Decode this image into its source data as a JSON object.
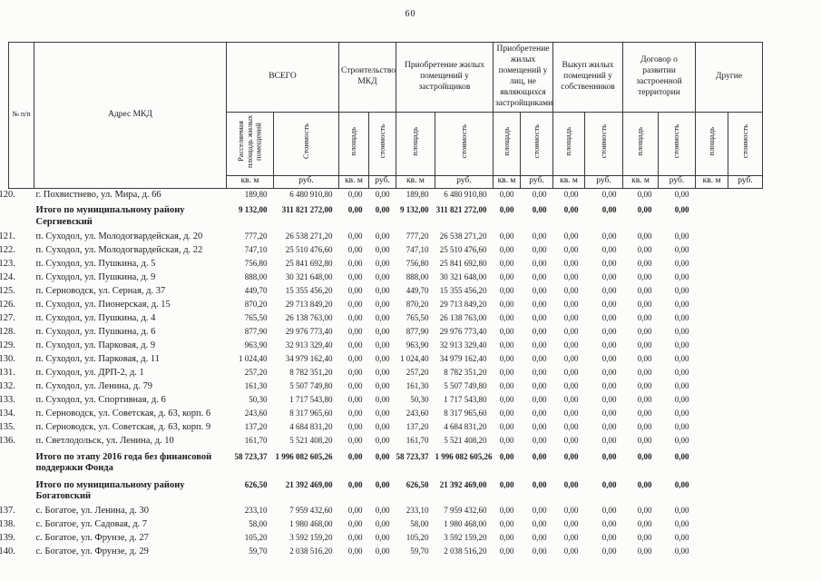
{
  "page": {
    "number": "60"
  },
  "table": {
    "header": {
      "col_num": "№ п/п",
      "col_address": "Адрес МКД",
      "groups": [
        {
          "label": "ВСЕГО",
          "sub": [
            "Расселяемая площадь жилых помещений",
            "Стоимость"
          ]
        },
        {
          "label": "Строительство МКД",
          "sub": [
            "площадь",
            "стоимость"
          ]
        },
        {
          "label": "Приобретение жилых помещений у застройщиков",
          "sub": [
            "площадь",
            "стоимость"
          ]
        },
        {
          "label": "Приобретение жилых помещений у лиц, не являющихся застройщиками",
          "sub": [
            "площадь",
            "стоимость"
          ]
        },
        {
          "label": "Выкуп жилых помещений у собственников",
          "sub": [
            "площадь",
            "стоимость"
          ]
        },
        {
          "label": "Договор о развитии застроенной территории",
          "sub": [
            "площадь",
            "стоимость"
          ]
        },
        {
          "label": "Другие",
          "sub": [
            "площадь",
            "стоимость"
          ]
        }
      ],
      "units": {
        "area": "кв. м",
        "cost": "руб."
      }
    },
    "rows": [
      {
        "num": "120.",
        "address": "г. Похвистнево, ул. Мира, д. 66",
        "bold": false,
        "values": [
          "189,80",
          "6 480 910,80",
          "0,00",
          "0,00",
          "189,80",
          "6 480 910,80",
          "0,00",
          "0,00",
          "0,00",
          "0,00",
          "0,00",
          "0,00",
          "",
          ""
        ]
      },
      {
        "num": "",
        "address": "Итого по муниципальному району Сергиевский",
        "bold": true,
        "values": [
          "9 132,00",
          "311 821 272,00",
          "0,00",
          "0,00",
          "9 132,00",
          "311 821 272,00",
          "0,00",
          "0,00",
          "0,00",
          "0,00",
          "0,00",
          "0,00",
          "",
          ""
        ]
      },
      {
        "num": "121.",
        "address": "п. Суходол, ул. Молодогвардейская, д. 20",
        "bold": false,
        "values": [
          "777,20",
          "26 538 271,20",
          "0,00",
          "0,00",
          "777,20",
          "26 538 271,20",
          "0,00",
          "0,00",
          "0,00",
          "0,00",
          "0,00",
          "0,00",
          "",
          ""
        ]
      },
      {
        "num": "122.",
        "address": "п. Суходол, ул. Молодогвардейская, д. 22",
        "bold": false,
        "values": [
          "747,10",
          "25 510 476,60",
          "0,00",
          "0,00",
          "747,10",
          "25 510 476,60",
          "0,00",
          "0,00",
          "0,00",
          "0,00",
          "0,00",
          "0,00",
          "",
          ""
        ]
      },
      {
        "num": "123.",
        "address": "п. Суходол, ул. Пушкина, д. 5",
        "bold": false,
        "values": [
          "756,80",
          "25 841 692,80",
          "0,00",
          "0,00",
          "756,80",
          "25 841 692,80",
          "0,00",
          "0,00",
          "0,00",
          "0,00",
          "0,00",
          "0,00",
          "",
          ""
        ]
      },
      {
        "num": "124.",
        "address": "п. Суходол, ул. Пушкина, д. 9",
        "bold": false,
        "values": [
          "888,00",
          "30 321 648,00",
          "0,00",
          "0,00",
          "888,00",
          "30 321 648,00",
          "0,00",
          "0,00",
          "0,00",
          "0,00",
          "0,00",
          "0,00",
          "",
          ""
        ]
      },
      {
        "num": "125.",
        "address": "п. Серноводск, ул. Серная, д. 37",
        "bold": false,
        "values": [
          "449,70",
          "15 355 456,20",
          "0,00",
          "0,00",
          "449,70",
          "15 355 456,20",
          "0,00",
          "0,00",
          "0,00",
          "0,00",
          "0,00",
          "0,00",
          "",
          ""
        ]
      },
      {
        "num": "126.",
        "address": "п. Суходол, ул. Пионерская, д. 15",
        "bold": false,
        "values": [
          "870,20",
          "29 713 849,20",
          "0,00",
          "0,00",
          "870,20",
          "29 713 849,20",
          "0,00",
          "0,00",
          "0,00",
          "0,00",
          "0,00",
          "0,00",
          "",
          ""
        ]
      },
      {
        "num": "127.",
        "address": "п. Суходол, ул. Пушкина, д. 4",
        "bold": false,
        "values": [
          "765,50",
          "26 138 763,00",
          "0,00",
          "0,00",
          "765,50",
          "26 138 763,00",
          "0,00",
          "0,00",
          "0,00",
          "0,00",
          "0,00",
          "0,00",
          "",
          ""
        ]
      },
      {
        "num": "128.",
        "address": "п. Суходол, ул. Пушкина, д. 6",
        "bold": false,
        "values": [
          "877,90",
          "29 976 773,40",
          "0,00",
          "0,00",
          "877,90",
          "29 976 773,40",
          "0,00",
          "0,00",
          "0,00",
          "0,00",
          "0,00",
          "0,00",
          "",
          ""
        ]
      },
      {
        "num": "129.",
        "address": "п. Суходол, ул. Парковая, д. 9",
        "bold": false,
        "values": [
          "963,90",
          "32 913 329,40",
          "0,00",
          "0,00",
          "963,90",
          "32 913 329,40",
          "0,00",
          "0,00",
          "0,00",
          "0,00",
          "0,00",
          "0,00",
          "",
          ""
        ]
      },
      {
        "num": "130.",
        "address": "п. Суходол, ул. Парковая, д. 11",
        "bold": false,
        "values": [
          "1 024,40",
          "34 979 162,40",
          "0,00",
          "0,00",
          "1 024,40",
          "34 979 162,40",
          "0,00",
          "0,00",
          "0,00",
          "0,00",
          "0,00",
          "0,00",
          "",
          ""
        ]
      },
      {
        "num": "131.",
        "address": "п. Суходол, ул. ДРП-2, д. 1",
        "bold": false,
        "values": [
          "257,20",
          "8 782 351,20",
          "0,00",
          "0,00",
          "257,20",
          "8 782 351,20",
          "0,00",
          "0,00",
          "0,00",
          "0,00",
          "0,00",
          "0,00",
          "",
          ""
        ]
      },
      {
        "num": "132.",
        "address": "п. Суходол, ул. Ленина, д. 79",
        "bold": false,
        "values": [
          "161,30",
          "5 507 749,80",
          "0,00",
          "0,00",
          "161,30",
          "5 507 749,80",
          "0,00",
          "0,00",
          "0,00",
          "0,00",
          "0,00",
          "0,00",
          "",
          ""
        ]
      },
      {
        "num": "133.",
        "address": "п. Суходол, ул. Спортивная, д. 6",
        "bold": false,
        "values": [
          "50,30",
          "1 717 543,80",
          "0,00",
          "0,00",
          "50,30",
          "1 717 543,80",
          "0,00",
          "0,00",
          "0,00",
          "0,00",
          "0,00",
          "0,00",
          "",
          ""
        ]
      },
      {
        "num": "134.",
        "address": "п. Серноводск, ул. Советская, д. 63, корп. 6",
        "bold": false,
        "values": [
          "243,60",
          "8 317 965,60",
          "0,00",
          "0,00",
          "243,60",
          "8 317 965,60",
          "0,00",
          "0,00",
          "0,00",
          "0,00",
          "0,00",
          "0,00",
          "",
          ""
        ]
      },
      {
        "num": "135.",
        "address": "п. Серноводск, ул. Советская, д. 63, корп. 9",
        "bold": false,
        "values": [
          "137,20",
          "4 684 831,20",
          "0,00",
          "0,00",
          "137,20",
          "4 684 831,20",
          "0,00",
          "0,00",
          "0,00",
          "0,00",
          "0,00",
          "0,00",
          "",
          ""
        ]
      },
      {
        "num": "136.",
        "address": "п. Светлодольск, ул. Ленина, д. 10",
        "bold": false,
        "values": [
          "161,70",
          "5 521 408,20",
          "0,00",
          "0,00",
          "161,70",
          "5 521 408,20",
          "0,00",
          "0,00",
          "0,00",
          "0,00",
          "0,00",
          "0,00",
          "",
          ""
        ]
      },
      {
        "num": "",
        "address": "Итого по этапу 2016 года без финансовой поддержки Фонда",
        "bold": true,
        "values": [
          "58 723,37",
          "1 996 082 605,26",
          "0,00",
          "0,00",
          "58 723,37",
          "1 996 082 605,26",
          "0,00",
          "0,00",
          "0,00",
          "0,00",
          "0,00",
          "0,00",
          "",
          ""
        ]
      },
      {
        "num": "",
        "address": "Итого по муниципальному району Богатовский",
        "bold": true,
        "values": [
          "626,50",
          "21 392 469,00",
          "0,00",
          "0,00",
          "626,50",
          "21 392 469,00",
          "0,00",
          "0,00",
          "0,00",
          "0,00",
          "0,00",
          "0,00",
          "",
          ""
        ]
      },
      {
        "num": "137.",
        "address": "с. Богатое, ул. Ленина, д. 30",
        "bold": false,
        "values": [
          "233,10",
          "7 959 432,60",
          "0,00",
          "0,00",
          "233,10",
          "7 959 432,60",
          "0,00",
          "0,00",
          "0,00",
          "0,00",
          "0,00",
          "0,00",
          "",
          ""
        ]
      },
      {
        "num": "138.",
        "address": "с. Богатое, ул. Садовая, д. 7",
        "bold": false,
        "values": [
          "58,00",
          "1 980 468,00",
          "0,00",
          "0,00",
          "58,00",
          "1 980 468,00",
          "0,00",
          "0,00",
          "0,00",
          "0,00",
          "0,00",
          "0,00",
          "",
          ""
        ]
      },
      {
        "num": "139.",
        "address": "с. Богатое, ул. Фрунзе, д. 27",
        "bold": false,
        "values": [
          "105,20",
          "3 592 159,20",
          "0,00",
          "0,00",
          "105,20",
          "3 592 159,20",
          "0,00",
          "0,00",
          "0,00",
          "0,00",
          "0,00",
          "0,00",
          "",
          ""
        ]
      },
      {
        "num": "140.",
        "address": "с. Богатое, ул. Фрунзе, д. 29",
        "bold": false,
        "values": [
          "59,70",
          "2 038 516,20",
          "0,00",
          "0,00",
          "59,70",
          "2 038 516,20",
          "0,00",
          "0,00",
          "0,00",
          "0,00",
          "0,00",
          "0,00",
          "",
          ""
        ]
      }
    ]
  }
}
